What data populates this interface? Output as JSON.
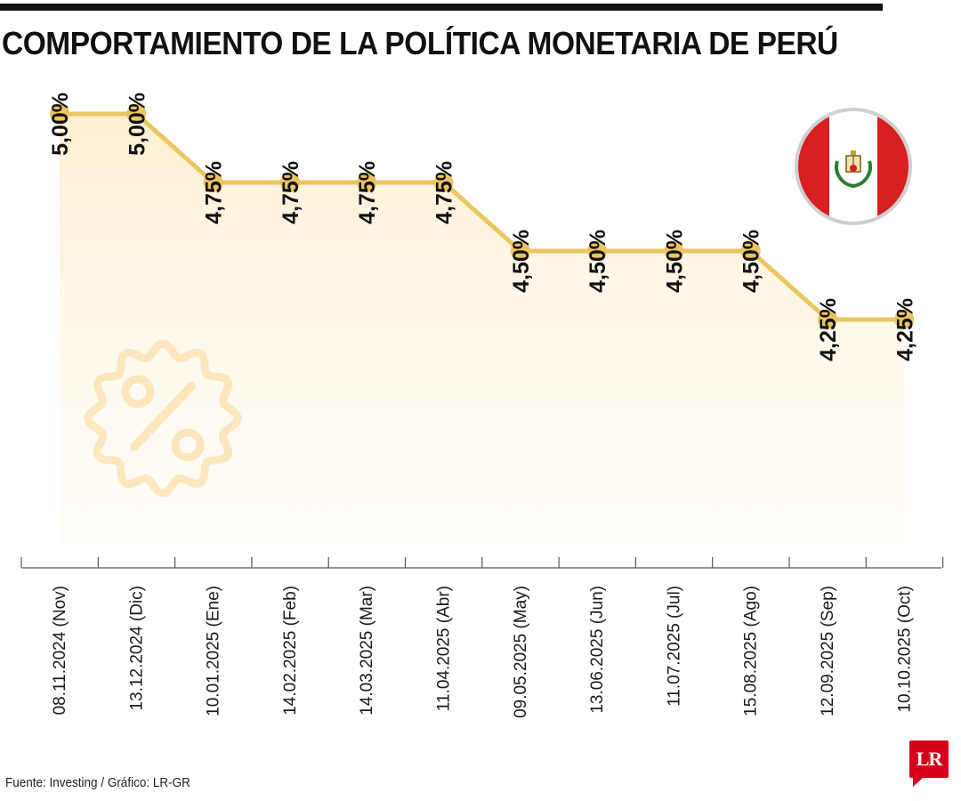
{
  "title": "COMPORTAMIENTO DE LA POLÍTICA MONETARIA DE PERÚ",
  "source": "Fuente: Investing / Gráfico: LR-GR",
  "logo": "LR",
  "colors": {
    "line": "#ecc65f",
    "marker": "#ebc462",
    "fill": "#fdebc4",
    "axis": "#555555",
    "text": "#111111",
    "flag_red": "#d81e1e",
    "badge": "#fbe3b3"
  },
  "icons": [
    "percent-badge-icon",
    "peru-flag-icon",
    "lr-logo-icon"
  ],
  "chart_data": {
    "type": "line",
    "title": "COMPORTAMIENTO DE LA POLÍTICA MONETARIA DE PERÚ",
    "xlabel": "",
    "ylabel": "",
    "ylim": [
      3.5,
      5.0
    ],
    "grid": false,
    "legend": "none",
    "categories": [
      "08.11.2024 (Nov)",
      "13.12.2024 (Dic)",
      "10.01.2025 (Ene)",
      "14.02.2025 (Feb)",
      "14.03.2025 (Mar)",
      "11.04.2025 (Abr)",
      "09.05.2025 (May)",
      "13.06.2025 (Jun)",
      "11.07.2025 (Jul)",
      "15.08.2025 (Ago)",
      "12.09.2025 (Sep)",
      "10.10.2025 (Oct)"
    ],
    "values": [
      5.0,
      5.0,
      4.75,
      4.75,
      4.75,
      4.75,
      4.5,
      4.5,
      4.5,
      4.5,
      4.25,
      4.25
    ],
    "labels": [
      "5,00%",
      "5,00%",
      "4,75%",
      "4,75%",
      "4,75%",
      "4,75%",
      "4,50%",
      "4,50%",
      "4,50%",
      "4,50%",
      "4,25%",
      "4,25%"
    ]
  }
}
